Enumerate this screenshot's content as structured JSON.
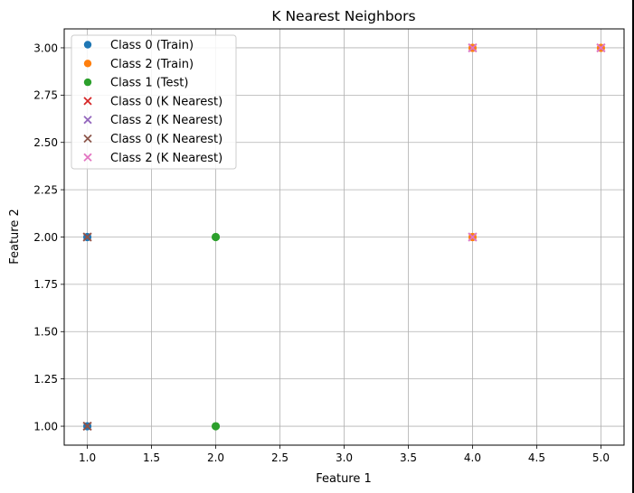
{
  "chart_data": {
    "type": "scatter",
    "title": "K Nearest Neighbors",
    "xlabel": "Feature 1",
    "ylabel": "Feature 2",
    "xlim": [
      0.82,
      5.18
    ],
    "ylim": [
      0.9,
      3.1
    ],
    "xticks": [
      "1.0",
      "1.5",
      "2.0",
      "2.5",
      "3.0",
      "3.5",
      "4.0",
      "4.5",
      "5.0"
    ],
    "yticks": [
      "1.00",
      "1.25",
      "1.50",
      "1.75",
      "2.00",
      "2.25",
      "2.50",
      "2.75",
      "3.00"
    ],
    "grid": true,
    "legend_position": "upper-left",
    "series": [
      {
        "name": "Class 0 (Train)",
        "marker": "circle",
        "color": "#1f77b4",
        "points": [
          [
            1,
            1
          ],
          [
            1,
            2
          ]
        ]
      },
      {
        "name": "Class 2 (Train)",
        "marker": "circle",
        "color": "#ff7f0e",
        "points": [
          [
            4,
            2
          ],
          [
            4,
            3
          ],
          [
            5,
            3
          ]
        ]
      },
      {
        "name": "Class 1 (Test)",
        "marker": "circle",
        "color": "#2ca02c",
        "points": [
          [
            2,
            1
          ],
          [
            2,
            2
          ]
        ]
      },
      {
        "name": "Class 0 (K Nearest)",
        "marker": "x",
        "color": "#d62728",
        "points": [
          [
            1,
            1
          ],
          [
            1,
            2
          ]
        ]
      },
      {
        "name": "Class 2 (K Nearest)",
        "marker": "x",
        "color": "#9467bd",
        "points": [
          [
            4,
            2
          ],
          [
            4,
            3
          ],
          [
            5,
            3
          ]
        ]
      },
      {
        "name": "Class 0 (K Nearest)",
        "marker": "x",
        "color": "#8c564b",
        "points": [
          [
            1,
            1
          ],
          [
            1,
            2
          ]
        ]
      },
      {
        "name": "Class 2 (K Nearest)",
        "marker": "x",
        "color": "#e377c2",
        "points": [
          [
            4,
            2
          ],
          [
            4,
            3
          ],
          [
            5,
            3
          ]
        ]
      }
    ]
  }
}
